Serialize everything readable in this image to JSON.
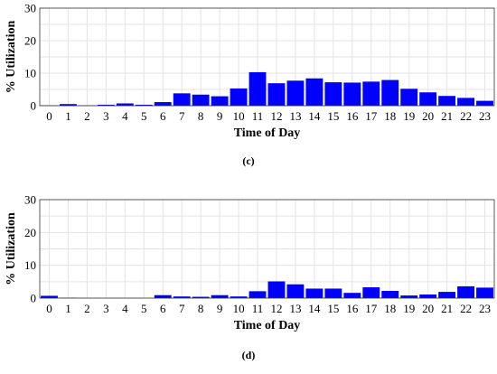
{
  "chart_data": [
    {
      "type": "bar",
      "caption": "(c)",
      "xlabel": "Time of Day",
      "ylabel": "% Utilization",
      "ylim": [
        0,
        30
      ],
      "yticks": [
        0,
        10,
        20,
        30
      ],
      "grid": true,
      "categories": [
        "0",
        "1",
        "2",
        "3",
        "4",
        "5",
        "6",
        "7",
        "8",
        "9",
        "10",
        "11",
        "12",
        "13",
        "14",
        "15",
        "16",
        "17",
        "18",
        "19",
        "20",
        "21",
        "22",
        "23"
      ],
      "values": [
        0.1,
        0.5,
        0.1,
        0.3,
        0.7,
        0.3,
        1.1,
        3.8,
        3.4,
        2.9,
        5.3,
        10.3,
        6.9,
        7.7,
        8.4,
        7.2,
        7.1,
        7.4,
        7.9,
        5.2,
        4.1,
        3.0,
        2.4,
        1.5
      ],
      "color": "#0000ff"
    },
    {
      "type": "bar",
      "caption": "(d)",
      "xlabel": "Time of Day",
      "ylabel": "% Utilization",
      "ylim": [
        0,
        30
      ],
      "yticks": [
        0,
        10,
        20,
        30
      ],
      "grid": true,
      "categories": [
        "0",
        "1",
        "2",
        "3",
        "4",
        "5",
        "6",
        "7",
        "8",
        "9",
        "10",
        "11",
        "12",
        "13",
        "14",
        "15",
        "16",
        "17",
        "18",
        "19",
        "20",
        "21",
        "22",
        "23"
      ],
      "values": [
        0.7,
        0.1,
        0.0,
        0.0,
        0.0,
        0.0,
        0.9,
        0.5,
        0.4,
        0.9,
        0.5,
        2.1,
        5.1,
        4.2,
        2.9,
        2.9,
        1.6,
        3.3,
        2.2,
        0.8,
        1.1,
        1.9,
        3.6,
        3.2
      ],
      "color": "#0000ff"
    }
  ]
}
